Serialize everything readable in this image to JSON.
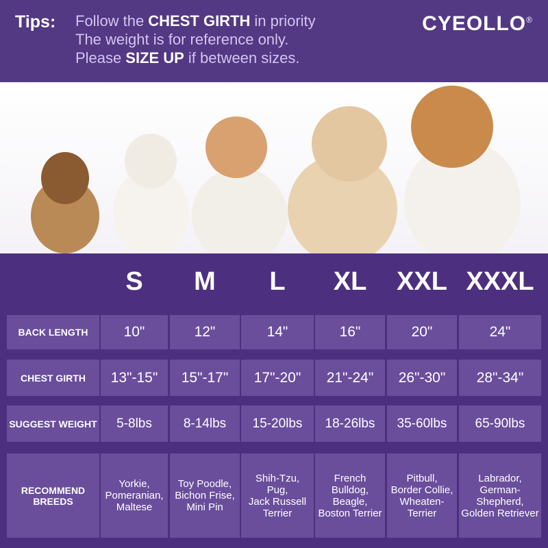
{
  "tips": {
    "label": "Tips:",
    "lines": [
      [
        "Follow the",
        "CHEST GIRTH",
        "in priority"
      ],
      [
        "The weight is for reference only."
      ],
      [
        "Please",
        "SIZE UP",
        "if between sizes."
      ]
    ]
  },
  "brand": {
    "name": "CYEOLLO",
    "mark": "®"
  },
  "table": {
    "sizes": [
      "S",
      "M",
      "L",
      "XL",
      "XXL",
      "XXXL"
    ],
    "rows": [
      {
        "label": [
          "BACK  LENGTH"
        ],
        "cells": [
          [
            "10\""
          ],
          [
            "12\""
          ],
          [
            "14\""
          ],
          [
            "16\""
          ],
          [
            "20\""
          ],
          [
            "24\""
          ]
        ]
      },
      {
        "label": [
          "CHEST GIRTH"
        ],
        "cells": [
          [
            "13\"-15\""
          ],
          [
            "15\"-17\""
          ],
          [
            "17\"-20\""
          ],
          [
            "21\"-24\""
          ],
          [
            "26\"-30\""
          ],
          [
            "28\"-34\""
          ]
        ]
      },
      {
        "label": [
          "SUGGEST WEIGHT"
        ],
        "cells": [
          [
            "5-8lbs"
          ],
          [
            "8-14lbs"
          ],
          [
            "15-20lbs"
          ],
          [
            "18-26lbs"
          ],
          [
            "35-60lbs"
          ],
          [
            "65-90lbs"
          ]
        ]
      },
      {
        "label": [
          "RECOMMEND",
          "BREEDS"
        ],
        "cells": [
          [
            "Yorkie,",
            "Pomeranian,",
            "Maltese"
          ],
          [
            "Toy Poodle,",
            "Bichon Frise,",
            "Mini Pin"
          ],
          [
            "Shih-Tzu,",
            "Pug,",
            "Jack Russell",
            "Terrier"
          ],
          [
            "French Bulldog,",
            "Beagle,",
            "Boston Terrier"
          ],
          [
            "Pitbull,",
            "Border Collie,",
            "Wheaten-",
            "Terrier"
          ],
          [
            "Labrador,",
            "German-",
            "Shepherd,",
            "Golden Retriever"
          ]
        ]
      }
    ]
  }
}
